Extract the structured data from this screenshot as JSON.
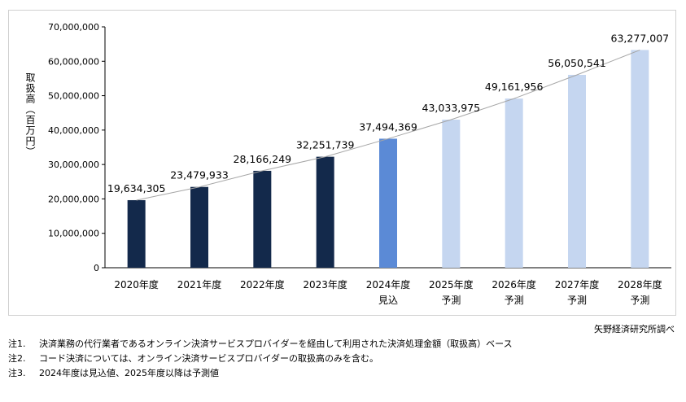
{
  "chart_data": {
    "type": "bar",
    "title": "",
    "xlabel": "",
    "ylabel": "取扱高（百万円）",
    "categories": [
      [
        "2020年度"
      ],
      [
        "2021年度"
      ],
      [
        "2022年度"
      ],
      [
        "2023年度"
      ],
      [
        "2024年度",
        "見込"
      ],
      [
        "2025年度",
        "予測"
      ],
      [
        "2026年度",
        "予測"
      ],
      [
        "2027年度",
        "予測"
      ],
      [
        "2028年度",
        "予測"
      ]
    ],
    "values": [
      19634305,
      23479933,
      28166249,
      32251739,
      37494369,
      43033975,
      49161956,
      56050541,
      63277007
    ],
    "value_labels": [
      "19,634,305",
      "23,479,933",
      "28,166,249",
      "32,251,739",
      "37,494,369",
      "43,033,975",
      "49,161,956",
      "56,050,541",
      "63,277,007"
    ],
    "bar_types": [
      "actual",
      "actual",
      "actual",
      "actual",
      "estimate",
      "forecast",
      "forecast",
      "forecast",
      "forecast"
    ],
    "colors": {
      "actual": "#13294b",
      "estimate": "#5b8ad6",
      "forecast": "#c5d6f0",
      "trend_line": "#a6a6a6",
      "axis": "#000000"
    },
    "ylim": [
      0,
      70000000
    ],
    "y_ticks": [
      0,
      10000000,
      20000000,
      30000000,
      40000000,
      50000000,
      60000000,
      70000000
    ],
    "y_tick_labels": [
      "0",
      "10,000,000",
      "20,000,000",
      "30,000,000",
      "40,000,000",
      "50,000,000",
      "60,000,000",
      "70,000,000"
    ],
    "grid": false,
    "trend_line": true
  },
  "source_credit": "矢野経済研究所調べ",
  "notes": [
    {
      "no": "注1.",
      "text": "決済業務の代行業者であるオンライン決済サービスプロバイダーを経由して利用された決済処理金額（取扱高）ベース"
    },
    {
      "no": "注2.",
      "text": "コード決済については、オンライン決済サービスプロバイダーの取扱高のみを含む。"
    },
    {
      "no": "注3.",
      "text": "2024年度は見込値、2025年度以降は予測値"
    }
  ]
}
